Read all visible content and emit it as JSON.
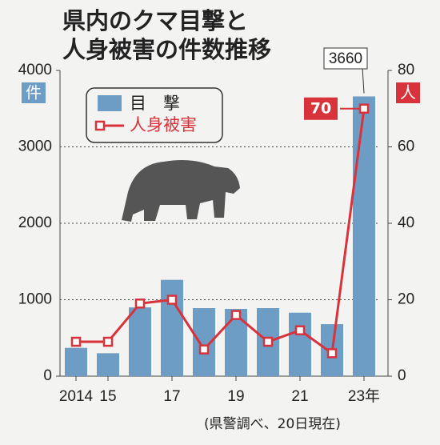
{
  "chart_data": {
    "type": "bar-line",
    "title_lines": [
      "県内のクマ目撃と",
      "人身被害の件数推移"
    ],
    "categories": [
      "2014",
      "15",
      null,
      "17",
      null,
      "19",
      null,
      "21",
      null,
      "23年"
    ],
    "series": [
      {
        "name": "目　撃",
        "color": "#6d9cc4",
        "values": [
          370,
          300,
          900,
          1260,
          890,
          880,
          890,
          830,
          680,
          3660
        ]
      },
      {
        "name": "人身被害",
        "color": "#d8323b",
        "axis": "y2",
        "values": [
          9,
          9,
          19,
          20,
          7,
          16,
          9,
          12,
          6,
          70
        ]
      }
    ],
    "ylim": [
      0,
      4000
    ],
    "yticks": [
      0,
      1000,
      2000,
      3000,
      4000
    ],
    "y_unit": "件",
    "y2lim": [
      0,
      80
    ],
    "y2ticks": [
      0,
      20,
      40,
      60,
      80
    ],
    "y2_unit": "人",
    "grid": true,
    "note": "(県警調べ、20日現在)"
  }
}
